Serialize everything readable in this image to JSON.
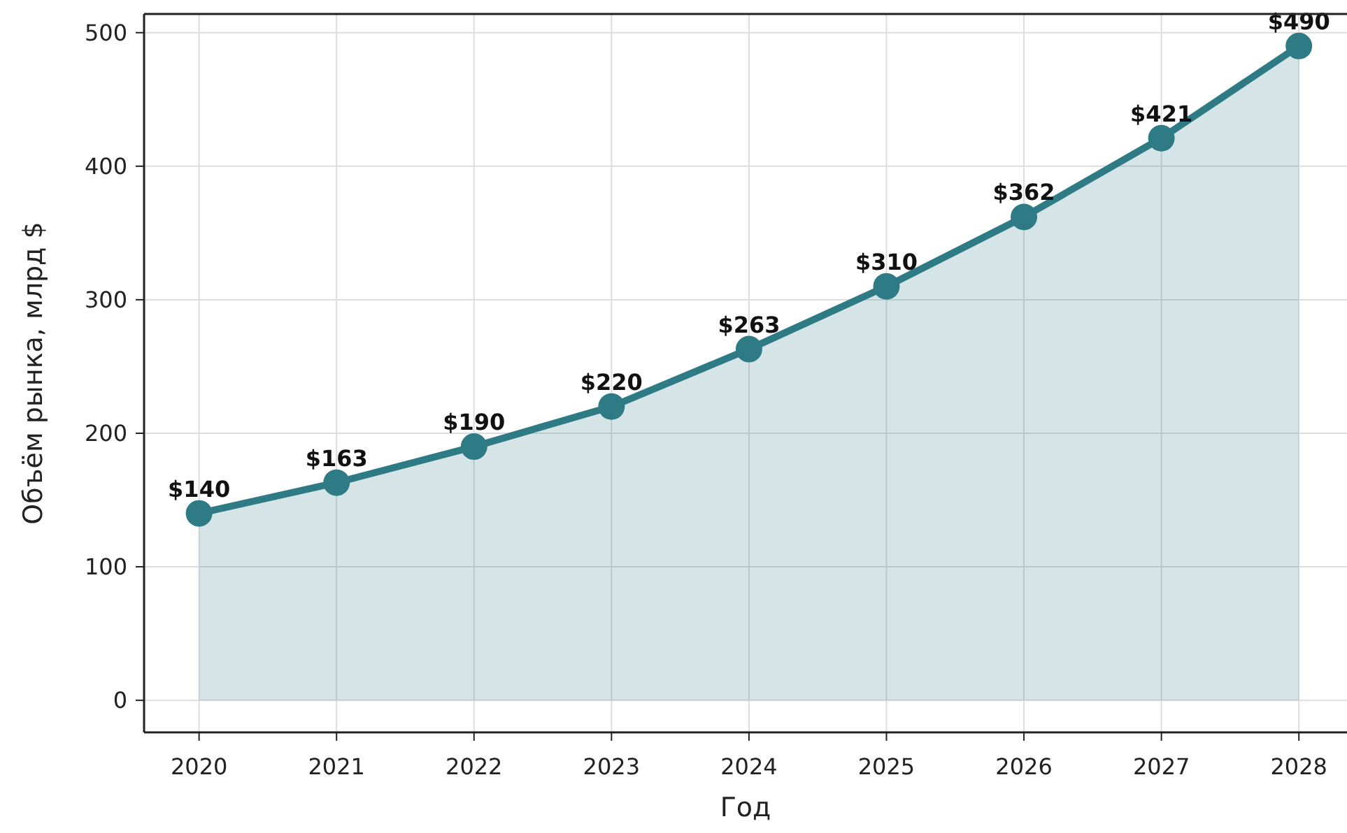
{
  "chart_data": {
    "type": "area",
    "xlabel": "Год",
    "ylabel": "Объём рынка, млрд $",
    "x": [
      2020,
      2021,
      2022,
      2023,
      2024,
      2025,
      2026,
      2027,
      2028
    ],
    "series": [
      {
        "color": "#2e7b86",
        "values": [
          140,
          163,
          190,
          220,
          263,
          310,
          362,
          421,
          490
        ],
        "value_labels": [
          "$140",
          "$163",
          "$190",
          "$220",
          "$263",
          "$310",
          "$362",
          "$421",
          "$490"
        ]
      }
    ],
    "xlim": [
      2019.6,
      2028.35
    ],
    "xticks": [
      2020,
      2021,
      2022,
      2023,
      2024,
      2025,
      2026,
      2027,
      2028
    ],
    "ylim": [
      -24,
      514
    ],
    "yticks": [
      0,
      100,
      200,
      300,
      400,
      500
    ],
    "grid": true,
    "marker": "circle",
    "line_style": "solid"
  }
}
